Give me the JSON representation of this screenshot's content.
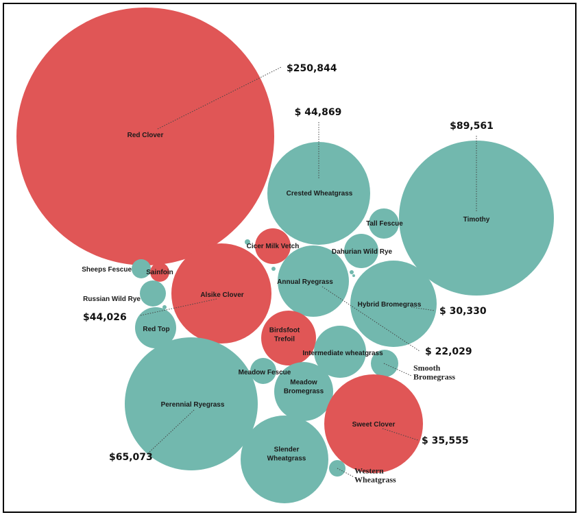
{
  "chart_data": {
    "type": "bubble",
    "colors": {
      "legume": "#e05656",
      "grass": "#72b8ae"
    },
    "bubbles": [
      {
        "name": "Red Clover",
        "group": "legume",
        "value": "$250,844"
      },
      {
        "name": "Crested Wheatgrass",
        "group": "grass",
        "value": "$ 44,869"
      },
      {
        "name": "Timothy",
        "group": "grass",
        "value": "$89,561"
      },
      {
        "name": "Tall Fescue",
        "group": "grass"
      },
      {
        "name": "Cicer Milk Vetch",
        "group": "legume"
      },
      {
        "name": "Dahurian Wild Rye",
        "group": "grass"
      },
      {
        "name": "Sheeps Fescue",
        "group": "grass"
      },
      {
        "name": "Sainfoin",
        "group": "legume"
      },
      {
        "name": "Alsike Clover",
        "group": "legume",
        "value": "$44,026"
      },
      {
        "name": "Annual Ryegrass",
        "group": "grass",
        "value": "$ 22,029"
      },
      {
        "name": "Russian Wild Rye",
        "group": "grass"
      },
      {
        "name": "Hybrid Bromegrass",
        "group": "grass",
        "value": "$ 30,330"
      },
      {
        "name": "Red Top",
        "group": "grass"
      },
      {
        "name": "Birdsfoot Trefoil",
        "group": "legume"
      },
      {
        "name": "Intermediate wheatgrass",
        "group": "grass"
      },
      {
        "name": "Smooth Bromegrass",
        "group": "grass"
      },
      {
        "name": "Meadow Fescue",
        "group": "grass"
      },
      {
        "name": "Perennial Ryegrass",
        "group": "grass",
        "value": "$65,073"
      },
      {
        "name": "Meadow Bromegrass",
        "group": "grass"
      },
      {
        "name": "Sweet Clover",
        "group": "legume",
        "value": "$ 35,555"
      },
      {
        "name": "Slender Wheatgrass",
        "group": "grass"
      },
      {
        "name": "Western Wheatgrass",
        "group": "grass"
      }
    ]
  }
}
